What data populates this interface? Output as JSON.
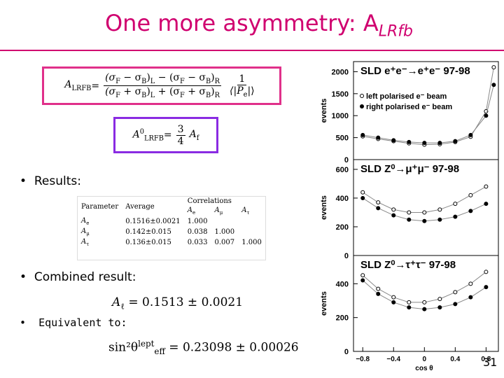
{
  "title": {
    "main": "One more asymmetry: A",
    "sub": "LRfb"
  },
  "formulas": {
    "afb": {
      "lhs": [
        "A",
        "LRFB"
      ],
      "eq": "=",
      "num": [
        "(σ",
        "F",
        " − σ",
        "B",
        ")",
        "L",
        " − (σ",
        "F",
        " − σ",
        "B",
        ")",
        "R"
      ],
      "den": [
        "(σ",
        "F",
        " + σ",
        "B",
        ")",
        "L",
        " + (σ",
        "F",
        " + σ",
        "B",
        ")",
        "R"
      ],
      "fnum": "1",
      "fden": [
        "⟨|P",
        "e",
        "|⟩"
      ]
    },
    "a0": {
      "lhs": "A",
      "sup": "0",
      "sub": "LRFB",
      "eq": "=",
      "num": "3",
      "den": "4",
      "rhs": [
        "A",
        "f"
      ]
    }
  },
  "bullets": [
    "Results:",
    "Combined result:",
    "Equivalent to:"
  ],
  "table": {
    "header": [
      "Parameter",
      "Average",
      "Correlations"
    ],
    "subheader": [
      [
        "A",
        "e"
      ],
      [
        "A",
        "μ"
      ],
      [
        "A",
        "τ"
      ]
    ],
    "rows": [
      {
        "param": [
          "A",
          "e"
        ],
        "average": "0.1516±0.0021",
        "corr": [
          "1.000",
          "",
          ""
        ]
      },
      {
        "param": [
          "A",
          "μ"
        ],
        "average": "0.142±0.015",
        "corr": [
          "0.038",
          "1.000",
          ""
        ]
      },
      {
        "param": [
          "A",
          "τ"
        ],
        "average": "0.136±0.015",
        "corr": [
          "0.033",
          "0.007",
          "1.000"
        ]
      }
    ]
  },
  "combined": [
    "A",
    "ℓ",
    " = 0.1513 ± 0.0021"
  ],
  "equivalent": {
    "lhs": "sin²θ",
    "sup": "lept",
    "sub": "eff",
    "rhs": " = 0.23098 ± 0.00026"
  },
  "chart_data": [
    {
      "type": "scatter",
      "title": "SLD e⁺e⁻→e⁺e⁻ 97-98",
      "ylabel": "events",
      "xlim": [
        -0.92,
        0.96
      ],
      "ylim": [
        0,
        2230
      ],
      "yticks": [
        0,
        500,
        1000,
        1500,
        2000
      ],
      "x": [
        -0.8,
        -0.6,
        -0.4,
        -0.2,
        0,
        0.2,
        0.4,
        0.6,
        0.8,
        0.9
      ],
      "series": [
        {
          "name": "left polarised e⁻ beam",
          "marker": "open",
          "values": [
            530,
            470,
            420,
            370,
            340,
            350,
            400,
            520,
            1100,
            2100
          ]
        },
        {
          "name": "right polarised e⁻ beam",
          "marker": "filled",
          "values": [
            560,
            500,
            440,
            400,
            380,
            380,
            420,
            560,
            1000,
            1700
          ]
        }
      ]
    },
    {
      "type": "scatter",
      "title": "SLD Z⁰→μ⁺μ⁻ 97-98",
      "ylabel": "events",
      "xlim": [
        -0.92,
        0.96
      ],
      "ylim": [
        0,
        668
      ],
      "yticks": [
        0,
        200,
        400,
        600
      ],
      "x": [
        -0.8,
        -0.6,
        -0.4,
        -0.2,
        0,
        0.2,
        0.4,
        0.6,
        0.8
      ],
      "series": [
        {
          "marker": "open",
          "values": [
            440,
            370,
            320,
            300,
            300,
            320,
            360,
            420,
            480
          ]
        },
        {
          "marker": "filled",
          "values": [
            400,
            330,
            280,
            250,
            240,
            250,
            270,
            310,
            360
          ]
        }
      ]
    },
    {
      "type": "scatter",
      "title": "SLD Z⁰→τ⁺τ⁻ 97-98",
      "ylabel": "events",
      "xlabel": "cos θ",
      "xlim": [
        -0.92,
        0.96
      ],
      "ylim": [
        0,
        567
      ],
      "yticks": [
        0,
        200,
        400
      ],
      "xticks": [
        {
          "value": -0.8,
          "label": "−0.8"
        },
        {
          "value": -0.4,
          "label": "−0.4"
        },
        0,
        0.4,
        0.8
      ],
      "x": [
        -0.8,
        -0.6,
        -0.4,
        -0.2,
        0,
        0.2,
        0.4,
        0.6,
        0.8
      ],
      "series": [
        {
          "marker": "open",
          "values": [
            450,
            370,
            320,
            290,
            290,
            310,
            350,
            400,
            470
          ]
        },
        {
          "marker": "filled",
          "values": [
            420,
            340,
            290,
            260,
            250,
            260,
            280,
            320,
            380
          ]
        }
      ]
    }
  ],
  "page_number": "31"
}
